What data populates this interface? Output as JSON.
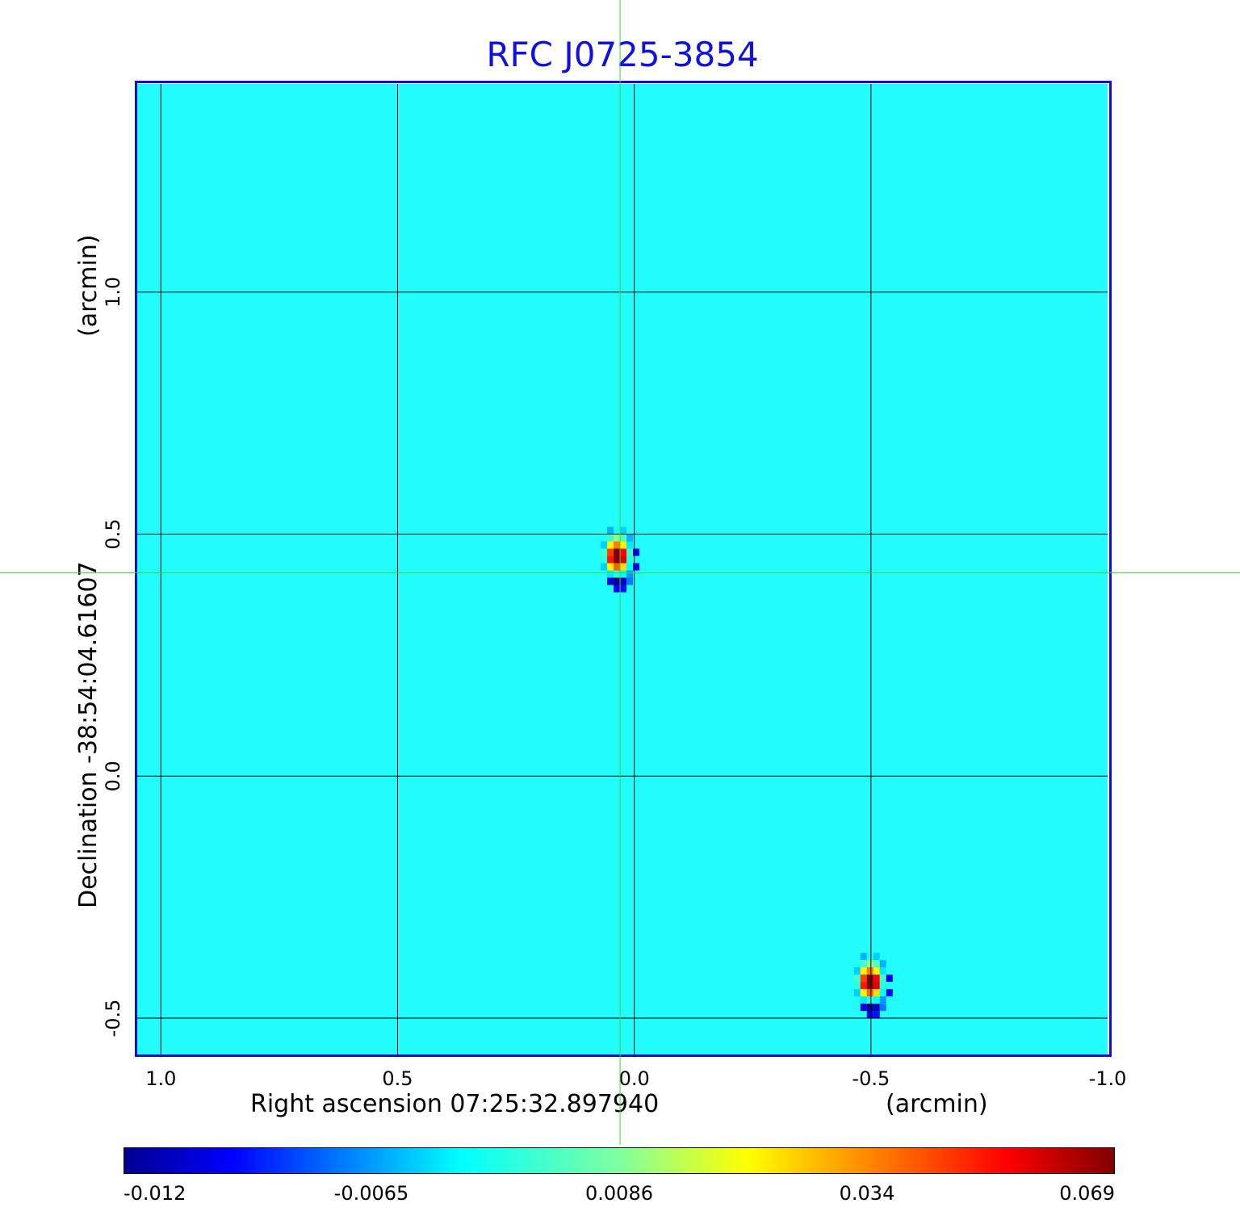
{
  "chart_data": {
    "type": "heatmap",
    "title": "RFC J0725-3854",
    "xlabel": "Right ascension  07:25:32.897940",
    "xunit": "(arcmin)",
    "ylabel": "Declination  -38:54:04.61607",
    "yunit": "(arcmin)",
    "xlim": [
      1.05,
      -1.0
    ],
    "ylim": [
      -0.575,
      1.43
    ],
    "xticks": [
      1.0,
      0.5,
      0.0,
      -0.5,
      -1.0
    ],
    "xtick_labels": [
      "1.0",
      "0.5",
      "0.0",
      "-0.5",
      "-1.0"
    ],
    "yticks": [
      -0.5,
      0.0,
      0.5,
      1.0
    ],
    "ytick_labels": [
      "-0.5",
      "0.0",
      "0.5",
      "1.0"
    ],
    "grid": true,
    "background_value": 0.0,
    "sources": [
      {
        "x": 0.03,
        "y": 0.44,
        "peak": 0.069,
        "negative_lobe": -0.012
      },
      {
        "x": -0.505,
        "y": -0.44,
        "peak": 0.069,
        "negative_lobe": -0.012
      }
    ],
    "crosshair": {
      "x": 0.03,
      "y": 0.42
    },
    "colorbar": {
      "colormap": "jet",
      "range": [
        -0.012,
        0.069
      ],
      "tick_labels": [
        "-0.012",
        "-0.0065",
        "0.0086",
        "0.034",
        "0.069"
      ]
    },
    "colors": {
      "title": "#1010e0",
      "frame": "#1010d0",
      "crosshair": "#33dd33",
      "background": "#22fcfc"
    }
  }
}
